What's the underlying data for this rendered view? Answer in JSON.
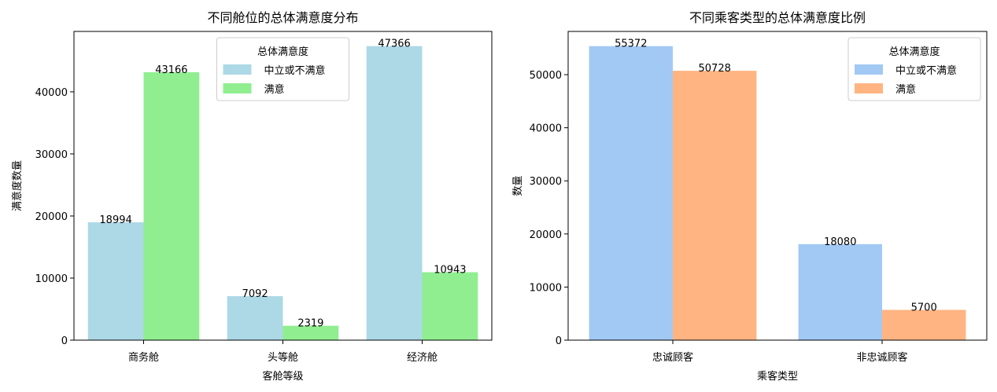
{
  "chart_data": [
    {
      "type": "bar",
      "title": "不同舱位的总体满意度分布",
      "x_label": "客舱等级",
      "y_label": "满意度数量",
      "categories": [
        "商务舱",
        "头等舱",
        "经济舱"
      ],
      "series": [
        {
          "name": "中立或不满意",
          "color": "#add8e6",
          "values": [
            18994,
            7092,
            47366
          ]
        },
        {
          "name": "满意",
          "color": "#90ee90",
          "values": [
            43166,
            2319,
            10943
          ]
        }
      ],
      "ylim": [
        0,
        49734
      ],
      "yticks": [
        0,
        10000,
        20000,
        30000,
        40000
      ],
      "legend_title": "总体满意度",
      "legend": "upper center"
    },
    {
      "type": "bar",
      "title": "不同乘客类型的总体满意度比例",
      "x_label": "乘客类型",
      "y_label": "数量",
      "categories": [
        "忠诚顾客",
        "非忠诚顾客"
      ],
      "series": [
        {
          "name": "中立或不满意",
          "color": "#a1c9f4",
          "values": [
            55372,
            18080
          ]
        },
        {
          "name": "满意",
          "color": "#ffb482",
          "values": [
            50728,
            5700
          ]
        }
      ],
      "ylim": [
        0,
        58141
      ],
      "yticks": [
        0,
        10000,
        20000,
        30000,
        40000,
        50000
      ],
      "legend_title": "总体满意度",
      "legend": "upper right"
    }
  ]
}
